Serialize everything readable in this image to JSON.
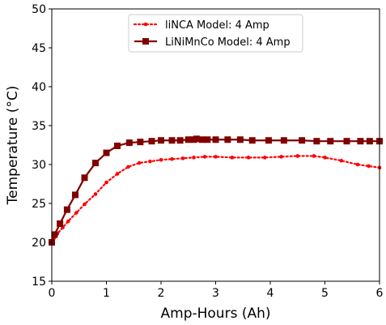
{
  "chart_data": {
    "type": "line",
    "xlabel": "Amp-Hours (Ah)",
    "ylabel": "Temperature (°C)",
    "xlim": [
      0,
      6
    ],
    "ylim": [
      15,
      50
    ],
    "xticks": [
      0,
      1,
      2,
      3,
      4,
      5,
      6
    ],
    "yticks": [
      15,
      20,
      25,
      30,
      35,
      40,
      45,
      50
    ],
    "grid": false,
    "legend": "top-center",
    "series": [
      {
        "name": "liNCA Model: 4 Amp",
        "color": "#ff0000",
        "style": "dotted-circle-markers",
        "x": [
          0,
          0.05,
          0.1,
          0.2,
          0.3,
          0.45,
          0.6,
          0.8,
          1.0,
          1.2,
          1.4,
          1.6,
          1.8,
          2.0,
          2.2,
          2.4,
          2.6,
          2.8,
          3.0,
          3.3,
          3.6,
          3.9,
          4.2,
          4.5,
          4.8,
          5.0,
          5.3,
          5.6,
          5.8,
          6.0
        ],
        "y": [
          20.0,
          20.6,
          21.1,
          21.9,
          22.7,
          23.8,
          24.9,
          26.2,
          27.7,
          28.8,
          29.7,
          30.2,
          30.4,
          30.6,
          30.7,
          30.8,
          30.9,
          31.0,
          31.0,
          30.9,
          30.9,
          30.9,
          31.0,
          31.1,
          31.1,
          30.9,
          30.5,
          30.0,
          29.8,
          29.6
        ]
      },
      {
        "name": "LiNiMnCo Model: 4 Amp",
        "color": "#800000",
        "style": "solid-square-markers",
        "x": [
          0,
          0.05,
          0.15,
          0.28,
          0.43,
          0.6,
          0.8,
          1.0,
          1.2,
          1.42,
          1.62,
          1.83,
          2.0,
          2.2,
          2.35,
          2.5,
          2.6,
          2.65,
          2.75,
          2.85,
          3.0,
          3.22,
          3.45,
          3.67,
          3.97,
          4.25,
          4.58,
          4.85,
          5.1,
          5.4,
          5.65,
          5.82,
          6.0
        ],
        "y": [
          20.0,
          21.0,
          22.4,
          24.2,
          26.1,
          28.3,
          30.2,
          31.5,
          32.4,
          32.8,
          32.9,
          33.0,
          33.1,
          33.1,
          33.1,
          33.2,
          33.2,
          33.3,
          33.2,
          33.2,
          33.2,
          33.2,
          33.2,
          33.1,
          33.1,
          33.1,
          33.1,
          33.0,
          33.0,
          33.0,
          33.0,
          33.0,
          33.0
        ]
      }
    ]
  }
}
